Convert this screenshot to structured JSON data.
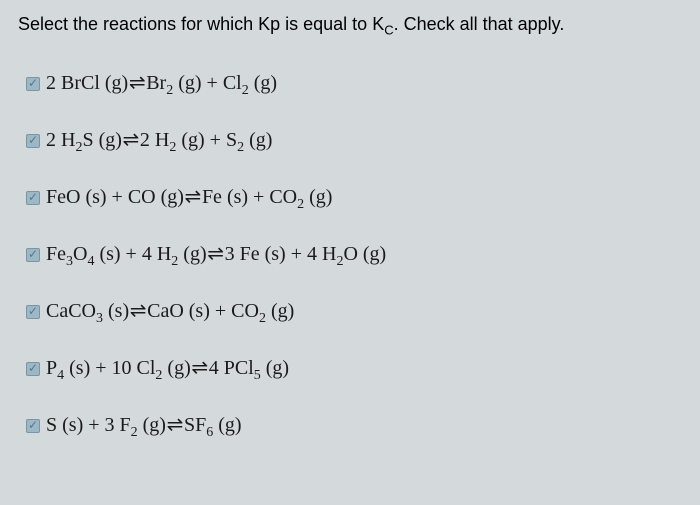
{
  "question": {
    "prefix": "Select the reactions for which Kp is equal to K",
    "subscript": "C",
    "suffix": ".  Check all that apply."
  },
  "reactions": [
    {
      "parts": [
        {
          "t": "2 BrCl (g)"
        },
        {
          "eq": true
        },
        {
          "t": "Br"
        },
        {
          "sub": "2"
        },
        {
          "t": " (g) + Cl"
        },
        {
          "sub": "2"
        },
        {
          "t": " (g)"
        }
      ]
    },
    {
      "parts": [
        {
          "t": "2 H"
        },
        {
          "sub": "2"
        },
        {
          "t": "S (g)"
        },
        {
          "eq": true
        },
        {
          "t": "2 H"
        },
        {
          "sub": "2"
        },
        {
          "t": " (g) + S"
        },
        {
          "sub": "2"
        },
        {
          "t": " (g)"
        }
      ]
    },
    {
      "parts": [
        {
          "t": "FeO (s) + CO (g)"
        },
        {
          "eq": true
        },
        {
          "t": "Fe (s) + CO"
        },
        {
          "sub": "2"
        },
        {
          "t": " (g)"
        }
      ]
    },
    {
      "parts": [
        {
          "t": "Fe"
        },
        {
          "sub": "3"
        },
        {
          "t": "O"
        },
        {
          "sub": "4"
        },
        {
          "t": " (s) + 4 H"
        },
        {
          "sub": "2"
        },
        {
          "t": " (g)"
        },
        {
          "eq": true
        },
        {
          "t": "3 Fe (s) + 4 H"
        },
        {
          "sub": "2"
        },
        {
          "t": "O (g)"
        }
      ]
    },
    {
      "parts": [
        {
          "t": "CaCO"
        },
        {
          "sub": "3"
        },
        {
          "t": " (s)"
        },
        {
          "eq": true
        },
        {
          "t": "CaO (s) + CO"
        },
        {
          "sub": "2"
        },
        {
          "t": " (g)"
        }
      ]
    },
    {
      "parts": [
        {
          "t": "P"
        },
        {
          "sub": "4"
        },
        {
          "t": " (s) + 10 Cl"
        },
        {
          "sub": "2"
        },
        {
          "t": " (g)"
        },
        {
          "eq": true
        },
        {
          "t": "4 PCl"
        },
        {
          "sub": "5"
        },
        {
          "t": " (g)"
        }
      ]
    },
    {
      "parts": [
        {
          "t": "S (s) + 3 F"
        },
        {
          "sub": "2"
        },
        {
          "t": " (g)"
        },
        {
          "eq": true
        },
        {
          "t": "SF"
        },
        {
          "sub": "6"
        },
        {
          "t": " (g)"
        }
      ]
    }
  ],
  "styling": {
    "background_color": "#d4d9db",
    "text_color": "#1a1a1a",
    "checkbox_bg": "#9cb8c5",
    "checkbox_border": "#7a95a3",
    "font_family_question": "Arial, sans-serif",
    "font_family_reaction": "Georgia, Times New Roman, serif",
    "question_fontsize": 18,
    "reaction_fontsize": 20,
    "sub_fontsize": 14
  }
}
